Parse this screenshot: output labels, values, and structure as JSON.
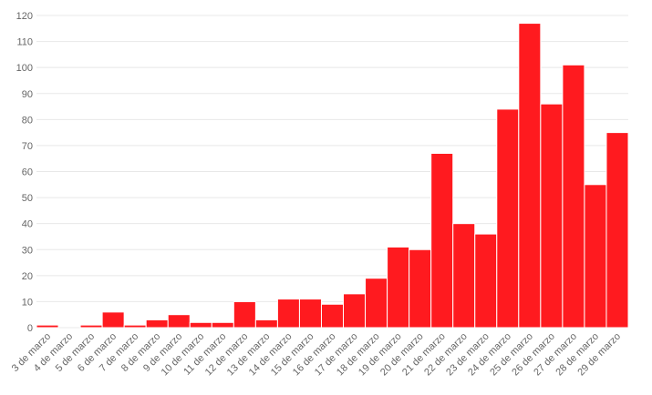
{
  "chart_data": {
    "type": "bar",
    "categories": [
      "3 de marzo",
      "4 de marzo",
      "5 de marzo",
      "6 de marzo",
      "7 de marzo",
      "8 de marzo",
      "9 de marzo",
      "10 de marzo",
      "11 de marzo",
      "12 de marzo",
      "13 de marzo",
      "14 de marzo",
      "15 de marzo",
      "16 de marzo",
      "17 de marzo",
      "18 de marzo",
      "19 de marzo",
      "20 de marzo",
      "21 de marzo",
      "22 de marzo",
      "23 de marzo",
      "24 de marzo",
      "25 de marzo",
      "26 de marzo",
      "27 de marzo",
      "28 de marzo",
      "29 de marzo"
    ],
    "values": [
      1,
      0,
      1,
      6,
      1,
      3,
      5,
      2,
      2,
      10,
      3,
      11,
      11,
      9,
      13,
      19,
      31,
      30,
      67,
      40,
      36,
      84,
      117,
      86,
      101,
      55,
      75
    ],
    "color": "#ff1a1f",
    "ylim": [
      0,
      120
    ],
    "yticks": [
      0,
      10,
      20,
      30,
      40,
      50,
      60,
      70,
      80,
      90,
      100,
      110,
      120
    ],
    "grid": true
  }
}
